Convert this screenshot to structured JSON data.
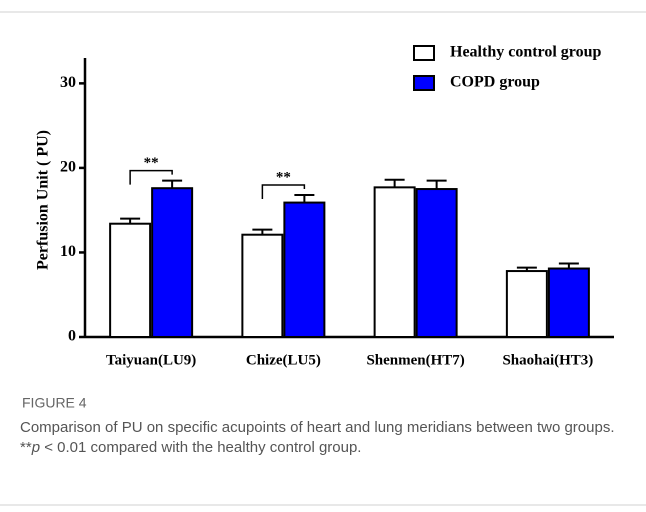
{
  "chart_data": {
    "type": "bar",
    "y_label": "Perfusion Unit ( PU)",
    "categories": [
      "Taiyuan(LU9)",
      "Chize(LU5)",
      "Shenmen(HT7)",
      "Shaohai(HT3)"
    ],
    "series": [
      {
        "name": "Healthy control group",
        "color": "#ffffff",
        "values": [
          13.4,
          12.1,
          17.7,
          7.8
        ],
        "errors": [
          0.6,
          0.6,
          0.9,
          0.4
        ]
      },
      {
        "name": "COPD group",
        "color": "#0000ff",
        "values": [
          17.6,
          15.9,
          17.5,
          8.1
        ],
        "errors": [
          0.9,
          0.9,
          1.0,
          0.6
        ]
      }
    ],
    "significance": [
      "**",
      "**",
      null,
      null
    ],
    "ylim": [
      0,
      33
    ],
    "yticks": [
      0,
      10,
      20,
      30
    ],
    "legend": "upper right"
  },
  "figure": {
    "label": "FIGURE 4",
    "caption": [
      "Comparison of PU on specific acupoints of heart and lung meridians between two groups. **",
      "p",
      " < 0.01 compared with the healthy control group."
    ]
  }
}
